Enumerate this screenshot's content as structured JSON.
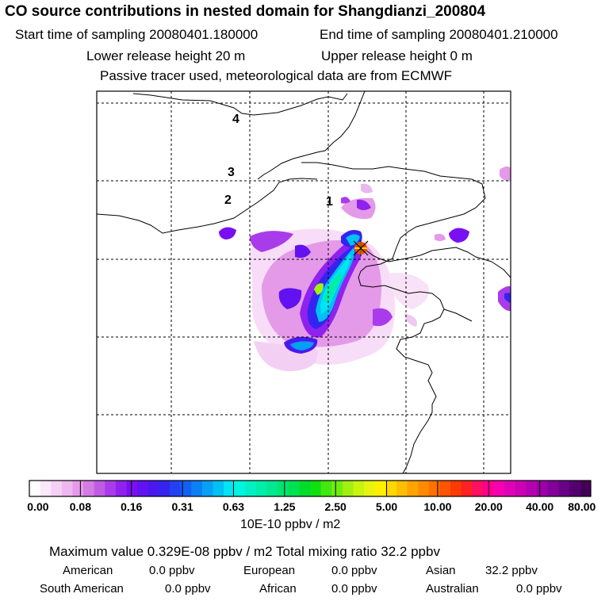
{
  "header": {
    "title": "CO  source contributions in nested domain for Shangdianzi_200804",
    "start_label": "Start time of sampling 20080401.180000",
    "end_label": "End time of sampling 20080401.210000",
    "lower_label": "Lower release height   20 m",
    "upper_label": "Upper release height    0 m",
    "tracer_label": "Passive tracer used, meteorological data are from ECMWF"
  },
  "map": {
    "region_labels": [
      "4",
      "3",
      "2",
      "1"
    ],
    "site_marker": "station-star-icon"
  },
  "colorbar": {
    "ticks": [
      "0.00",
      "0.08",
      "0.16",
      "0.31",
      "0.63",
      "1.25",
      "2.50",
      "5.00",
      "10.00",
      "20.00",
      "40.00",
      "80.00"
    ],
    "units": "10E-10 ppbv / m2",
    "colors": [
      "#ffffff",
      "#fbe8fb",
      "#f5d0f5",
      "#eeb8ee",
      "#e49ae8",
      "#d57be4",
      "#c05ce4",
      "#a93cea",
      "#8f22ee",
      "#7a10f2",
      "#6212f0",
      "#4a18ee",
      "#3524f0",
      "#2440f4",
      "#1460f4",
      "#0a80f4",
      "#08a0f4",
      "#00c0f4",
      "#00e4f4",
      "#00f4e0",
      "#00f0c4",
      "#00ecaa",
      "#00e890",
      "#00e470",
      "#00e050",
      "#00dc2c",
      "#10e010",
      "#40e810",
      "#70ec10",
      "#a0f010",
      "#c8f410",
      "#e8f410",
      "#fff000",
      "#ffd800",
      "#ffbe00",
      "#ffa400",
      "#ff8a00",
      "#ff7000",
      "#ff5400",
      "#ff3a00",
      "#ff2222",
      "#ff1060",
      "#ff0090",
      "#f400b0",
      "#e000b8",
      "#cc00b4",
      "#b400b0",
      "#9c00a8",
      "#84009c",
      "#6a0088",
      "#540070",
      "#440058"
    ]
  },
  "summary": {
    "max_line": "Maximum value  0.329E-08 ppbv / m2       Total mixing ratio       32.2 ppbv",
    "regions": [
      {
        "name": "American",
        "value": "0.0 ppbv"
      },
      {
        "name": "European",
        "value": "0.0 ppbv"
      },
      {
        "name": "Asian",
        "value": "32.2 ppbv"
      },
      {
        "name": "South American",
        "value": "0.0 ppbv"
      },
      {
        "name": "African",
        "value": "0.0 ppbv"
      },
      {
        "name": "Australian",
        "value": "0.0 ppbv"
      }
    ]
  }
}
